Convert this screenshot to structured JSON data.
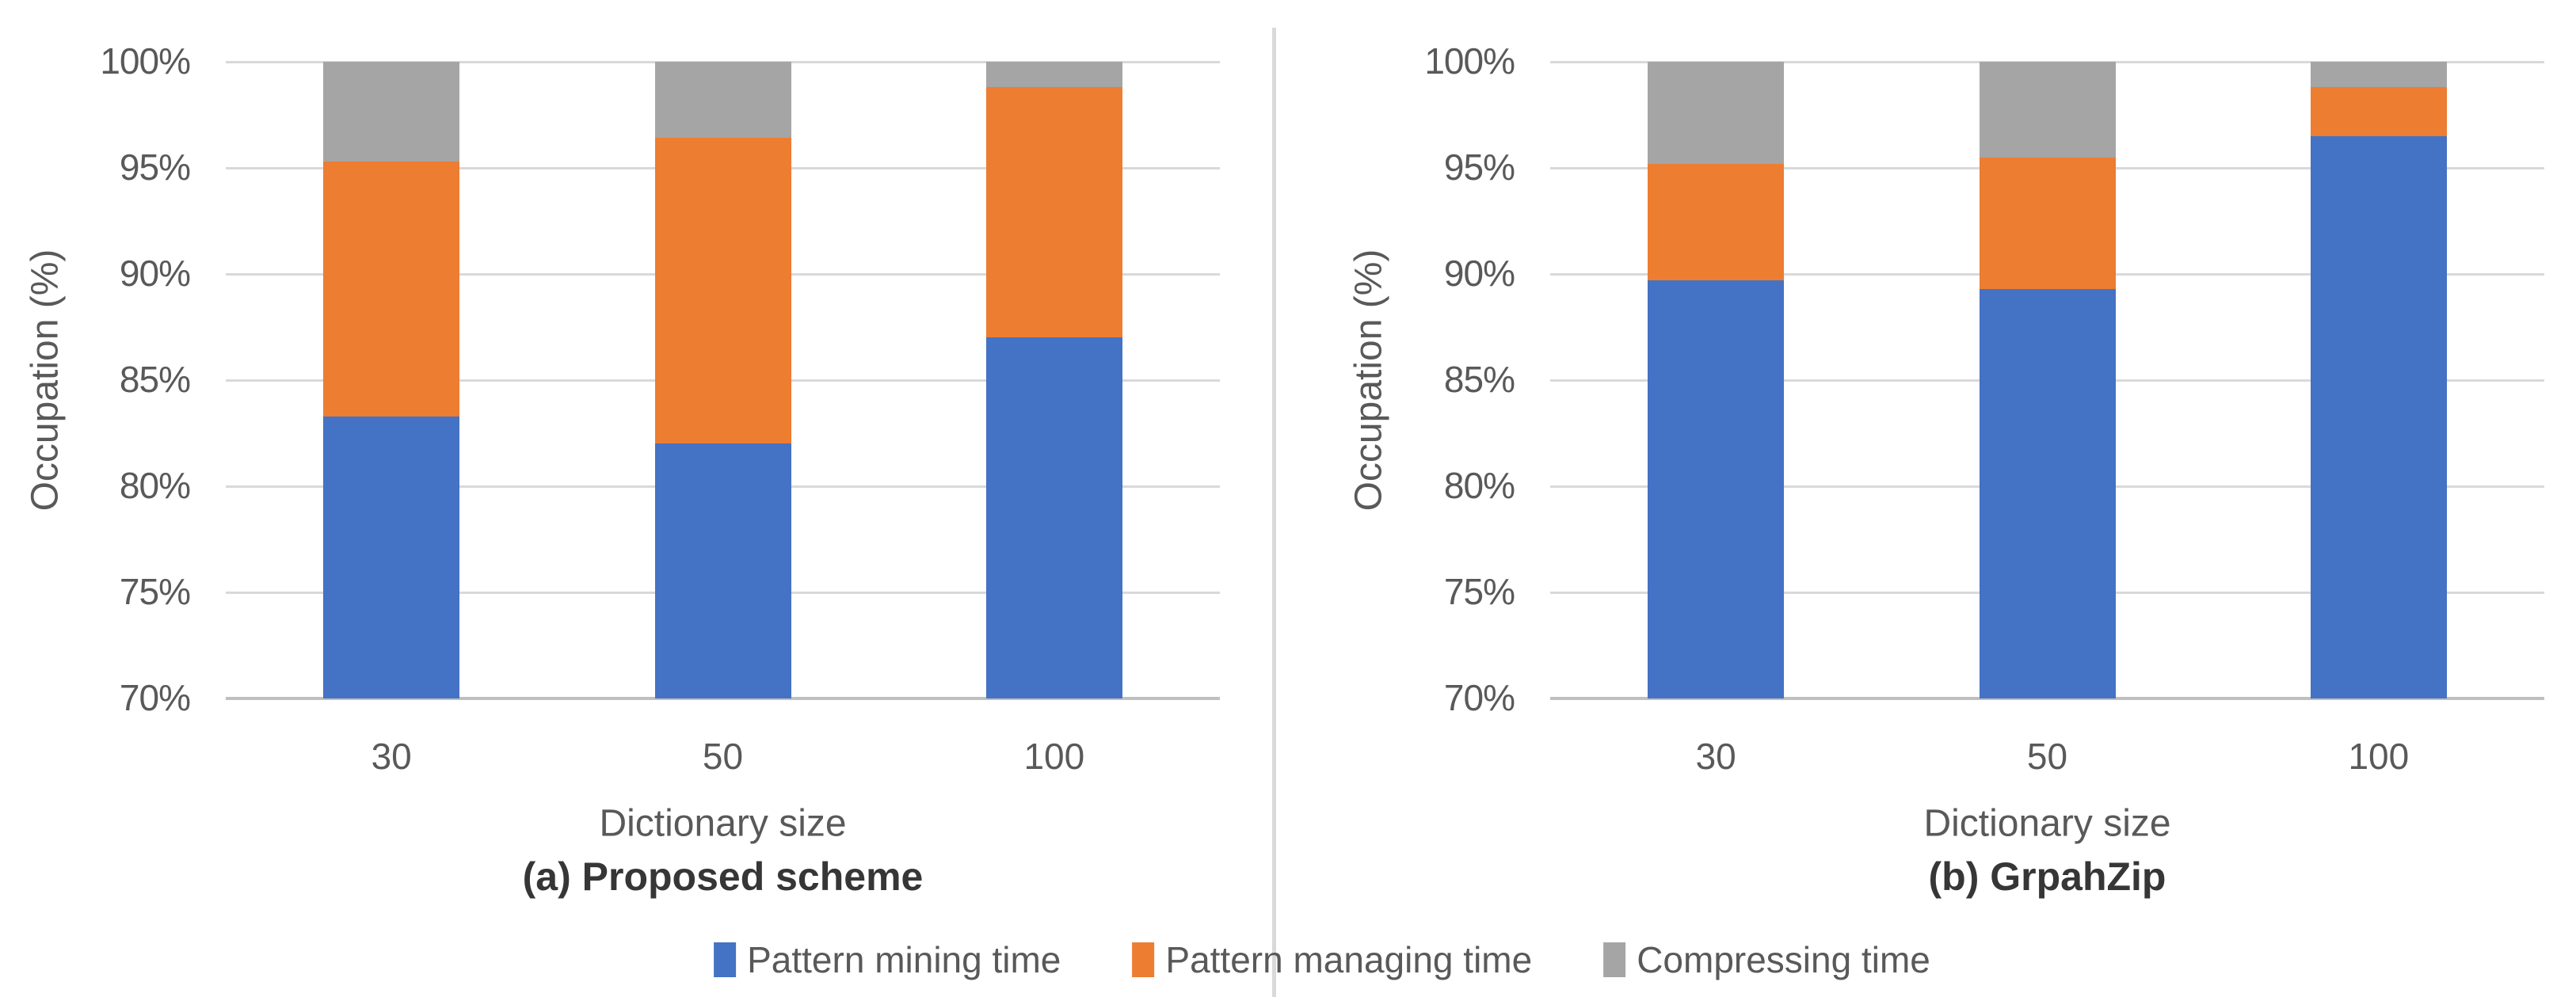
{
  "figure": {
    "background": "#ffffff",
    "divider_color": "#d9d9d9",
    "gridline_color": "#d9d9d9",
    "axisline_color": "#bfbfbf",
    "text_color": "#595959",
    "caption_color": "#363636"
  },
  "legend": {
    "items": [
      {
        "label": "Pattern mining time",
        "color": "#4472C4",
        "swatch": "blue-square"
      },
      {
        "label": "Pattern managing time",
        "color": "#ED7D31",
        "swatch": "orange-square"
      },
      {
        "label": "Compressing time",
        "color": "#A5A5A5",
        "swatch": "gray-square"
      }
    ]
  },
  "chart_data": [
    {
      "type": "bar",
      "stacked": true,
      "title": "(a) Proposed scheme",
      "xlabel": "Dictionary size",
      "ylabel": "Occupation (%)",
      "categories": [
        "30",
        "50",
        "100"
      ],
      "series": [
        {
          "name": "Pattern mining time",
          "color": "#4472C4",
          "values": [
            83.3,
            82.0,
            87.0
          ]
        },
        {
          "name": "Pattern managing time",
          "color": "#ED7D31",
          "values": [
            12.0,
            14.4,
            11.8
          ]
        },
        {
          "name": "Compressing time",
          "color": "#A5A5A5",
          "values": [
            4.7,
            3.6,
            1.2
          ]
        }
      ],
      "ylim": [
        70,
        100
      ],
      "yticks": [
        "100%",
        "95%",
        "90%",
        "85%",
        "80%",
        "75%",
        "70%"
      ],
      "grid": true,
      "legend_position": "bottom-shared"
    },
    {
      "type": "bar",
      "stacked": true,
      "title": "(b) GrpahZip",
      "xlabel": "Dictionary size",
      "ylabel": "Occupation (%)",
      "categories": [
        "30",
        "50",
        "100"
      ],
      "series": [
        {
          "name": "Pattern mining time",
          "color": "#4472C4",
          "values": [
            89.7,
            89.3,
            96.5
          ]
        },
        {
          "name": "Pattern managing time",
          "color": "#ED7D31",
          "values": [
            5.5,
            6.2,
            2.3
          ]
        },
        {
          "name": "Compressing time",
          "color": "#A5A5A5",
          "values": [
            4.8,
            4.5,
            1.2
          ]
        }
      ],
      "ylim": [
        70,
        100
      ],
      "yticks": [
        "100%",
        "95%",
        "90%",
        "85%",
        "80%",
        "75%",
        "70%"
      ],
      "grid": true,
      "legend_position": "bottom-shared"
    }
  ]
}
